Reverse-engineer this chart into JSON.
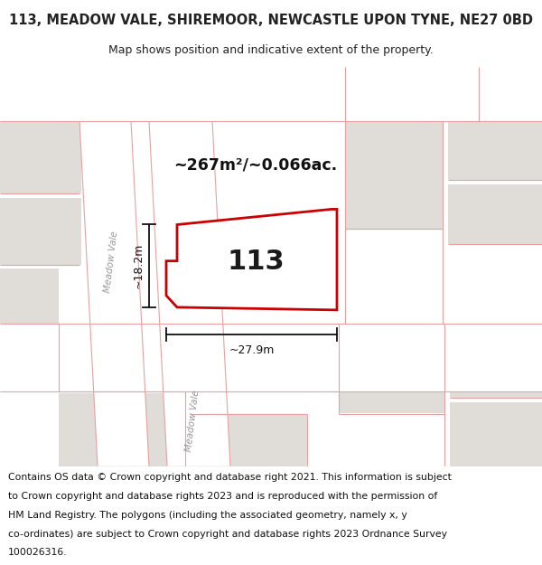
{
  "title": "113, MEADOW VALE, SHIREMOOR, NEWCASTLE UPON TYNE, NE27 0BD",
  "subtitle": "Map shows position and indicative extent of the property.",
  "area_label": "~267m²/~0.066ac.",
  "height_label": "~18.2m",
  "width_label": "~27.9m",
  "property_number": "113",
  "footer_lines": [
    "Contains OS data © Crown copyright and database right 2021. This information is subject",
    "to Crown copyright and database rights 2023 and is reproduced with the permission of",
    "HM Land Registry. The polygons (including the associated geometry, namely x, y",
    "co-ordinates) are subject to Crown copyright and database rights 2023 Ordnance Survey",
    "100026316."
  ],
  "bg_color": "#f2f0ed",
  "block_color": "#e0ddd8",
  "road_color": "#ffffff",
  "road_line_color": "#e8a0a0",
  "property_fill": "#ffffff",
  "property_edge": "#cc0000",
  "title_fontsize": 10.5,
  "subtitle_fontsize": 9,
  "footer_fontsize": 7.8,
  "road_label_color": "#999999",
  "text_color": "#222222"
}
